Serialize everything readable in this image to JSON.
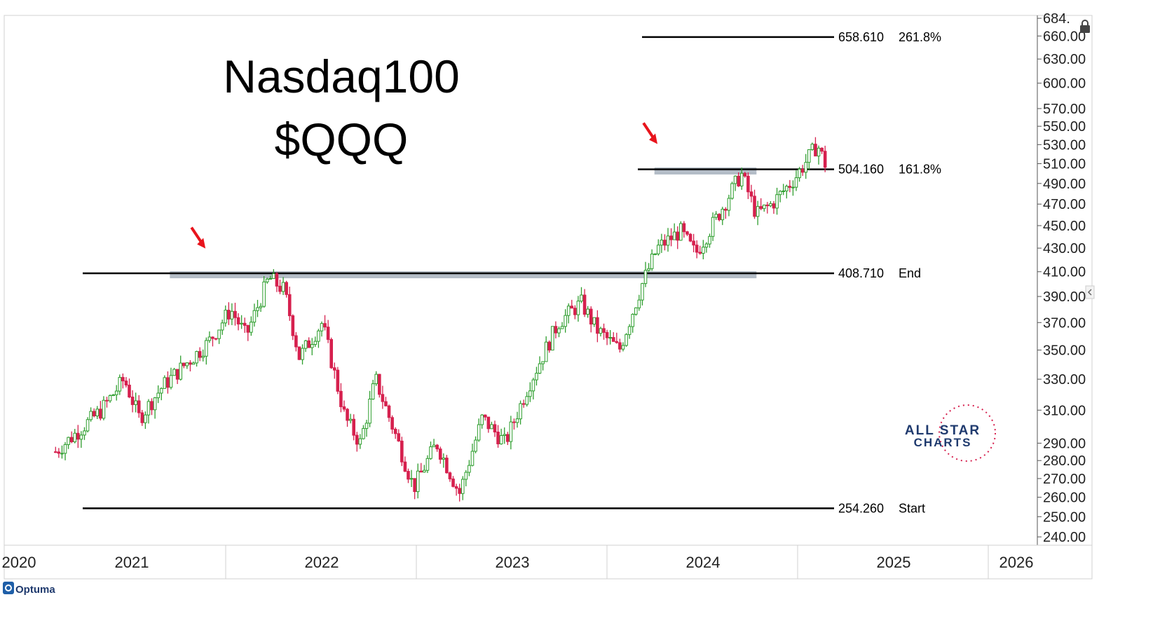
{
  "title": "Nasdaq100",
  "subtitle": "$QQQ",
  "footer": {
    "brand": "Optuma"
  },
  "watermark": {
    "line1": "ALL STAR",
    "line2": "CHARTS"
  },
  "colors": {
    "up": "#2e9e2e",
    "down": "#d6204e",
    "arrow": "#e8141c",
    "zone": "#b4bdc7",
    "axis": "#555555"
  },
  "chart_data": {
    "type": "candlestick",
    "title": "Nasdaq100 $QQQ",
    "y_scale": "log",
    "ylim": [
      236,
      688
    ],
    "xlim": [
      2019.98,
      2026.5
    ],
    "y_ticks": [
      "240.00",
      "250.00",
      "260.00",
      "270.00",
      "280.00",
      "290.00",
      "310.00",
      "330.00",
      "350.00",
      "370.00",
      "390.00",
      "410.00",
      "430.00",
      "450.00",
      "470.00",
      "490.00",
      "510.00",
      "530.00",
      "550.00",
      "570.00",
      "600.00",
      "630.00",
      "660.00",
      "684."
    ],
    "x_ticks": [
      "2020",
      "2021",
      "2022",
      "2023",
      "2024",
      "2025",
      "2026"
    ],
    "fib_levels": [
      {
        "price": 658.61,
        "price_label": "658.610",
        "label": "261.8%"
      },
      {
        "price": 504.16,
        "price_label": "504.160",
        "label": "161.8%"
      },
      {
        "price": 408.71,
        "price_label": "408.710",
        "label": "End"
      },
      {
        "price": 254.26,
        "price_label": "254.260",
        "label": "Start"
      }
    ],
    "zones": [
      {
        "price": 407.5,
        "x_start": 2020.75,
        "x_end": 2024.6
      },
      {
        "price": 502.5,
        "x_start": 2023.93,
        "x_end": 2024.6
      }
    ],
    "arrows": [
      {
        "x": 2020.97,
        "price": 413
      },
      {
        "x": 2023.95,
        "price": 510
      }
    ],
    "path_anchors": [
      {
        "t": 2020.0,
        "price": 285
      },
      {
        "t": 2020.3,
        "price": 310
      },
      {
        "t": 2020.45,
        "price": 330
      },
      {
        "t": 2020.55,
        "price": 305
      },
      {
        "t": 2020.7,
        "price": 325
      },
      {
        "t": 2020.85,
        "price": 340
      },
      {
        "t": 2021.0,
        "price": 355
      },
      {
        "t": 2021.15,
        "price": 380
      },
      {
        "t": 2021.25,
        "price": 360
      },
      {
        "t": 2021.4,
        "price": 405
      },
      {
        "t": 2021.5,
        "price": 395
      },
      {
        "t": 2021.6,
        "price": 345
      },
      {
        "t": 2021.75,
        "price": 370
      },
      {
        "t": 2021.9,
        "price": 305
      },
      {
        "t": 2022.0,
        "price": 290
      },
      {
        "t": 2022.1,
        "price": 330
      },
      {
        "t": 2022.25,
        "price": 290
      },
      {
        "t": 2022.35,
        "price": 265
      },
      {
        "t": 2022.5,
        "price": 290
      },
      {
        "t": 2022.65,
        "price": 262
      },
      {
        "t": 2022.8,
        "price": 305
      },
      {
        "t": 2022.95,
        "price": 290
      },
      {
        "t": 2023.1,
        "price": 325
      },
      {
        "t": 2023.3,
        "price": 370
      },
      {
        "t": 2023.45,
        "price": 385
      },
      {
        "t": 2023.55,
        "price": 365
      },
      {
        "t": 2023.7,
        "price": 350
      },
      {
        "t": 2023.85,
        "price": 400
      },
      {
        "t": 2023.95,
        "price": 430
      },
      {
        "t": 2024.1,
        "price": 445
      },
      {
        "t": 2024.2,
        "price": 425
      },
      {
        "t": 2024.35,
        "price": 460
      },
      {
        "t": 2024.5,
        "price": 500
      },
      {
        "t": 2024.6,
        "price": 460
      },
      {
        "t": 2024.7,
        "price": 470
      },
      {
        "t": 2024.85,
        "price": 495
      },
      {
        "t": 2025.0,
        "price": 530
      },
      {
        "t": 2025.05,
        "price": 510
      }
    ]
  }
}
